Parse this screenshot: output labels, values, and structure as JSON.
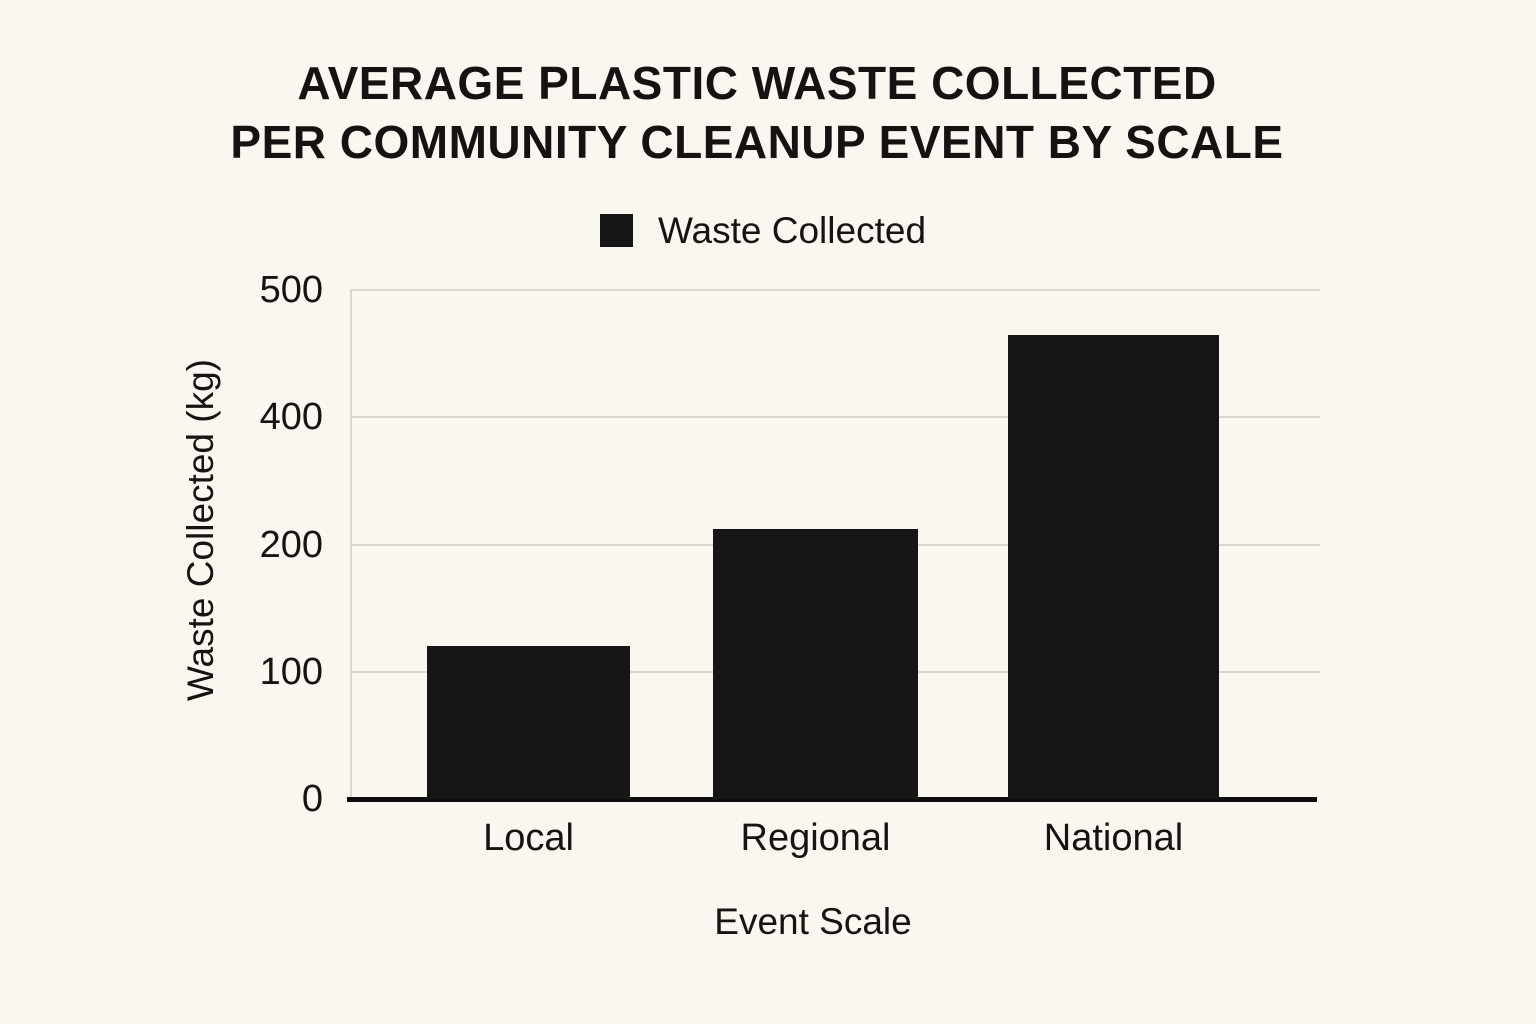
{
  "page": {
    "background_color": "#f9f7f0",
    "text_color": "#151312"
  },
  "chart_data": {
    "type": "bar",
    "title": "AVERAGE PLASTIC WASTE COLLECTED PER COMMUNITY CLEANUP EVENT BY SCALE",
    "title_lines": [
      "AVERAGE PLASTIC WASTE COLLECTED",
      "PER COMMUNITY CLEANUP EVENT BY SCALE"
    ],
    "categories": [
      "Local",
      "Regional",
      "National"
    ],
    "series": [
      {
        "name": "Waste Collected",
        "values": [
          120,
          225,
          465
        ],
        "color": "#161616"
      }
    ],
    "xlabel": "Event Scale",
    "ylabel": "Waste Collected (kg)",
    "y_tick_labels": [
      "0",
      "100",
      "200",
      "400",
      "500"
    ],
    "y_ticks_numeric": [
      0,
      100,
      200,
      400,
      500
    ],
    "ylim": [
      0,
      500
    ],
    "grid": "horizontal-only",
    "legend_position": "top-center",
    "axis_note": "y tick labels are printed at even spacing with no 300 label",
    "colors": {
      "bar": "#161616",
      "gridline": "#d9d7d0",
      "baseline": "#0f0f0f",
      "background": "#f9f7f0"
    }
  }
}
